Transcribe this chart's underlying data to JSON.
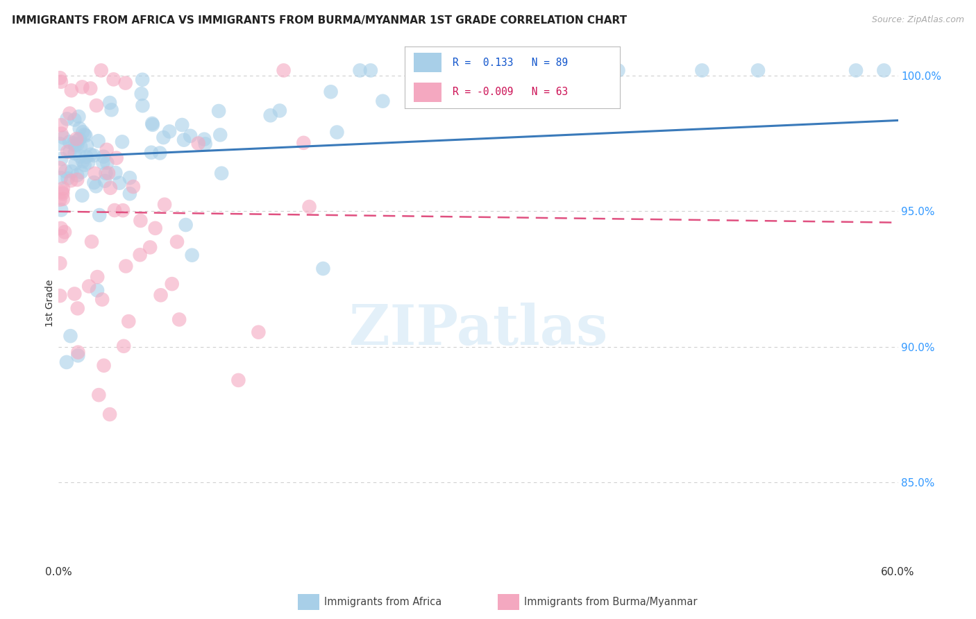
{
  "title": "IMMIGRANTS FROM AFRICA VS IMMIGRANTS FROM BURMA/MYANMAR 1ST GRADE CORRELATION CHART",
  "source": "Source: ZipAtlas.com",
  "ylabel": "1st Grade",
  "right_yticks": [
    "100.0%",
    "95.0%",
    "90.0%",
    "85.0%"
  ],
  "right_ytick_vals": [
    1.0,
    0.95,
    0.9,
    0.85
  ],
  "legend_blue_label": "Immigrants from Africa",
  "legend_pink_label": "Immigrants from Burma/Myanmar",
  "R_blue": 0.133,
  "N_blue": 89,
  "R_pink": -0.009,
  "N_pink": 63,
  "blue_color": "#a8cfe8",
  "pink_color": "#f4a8c0",
  "blue_line_color": "#3a7aba",
  "pink_line_color": "#e05080",
  "xlim": [
    0.0,
    0.6
  ],
  "ylim": [
    0.82,
    1.012
  ],
  "watermark": "ZIPatlas",
  "background_color": "#ffffff",
  "grid_color": "#d0d0d0"
}
